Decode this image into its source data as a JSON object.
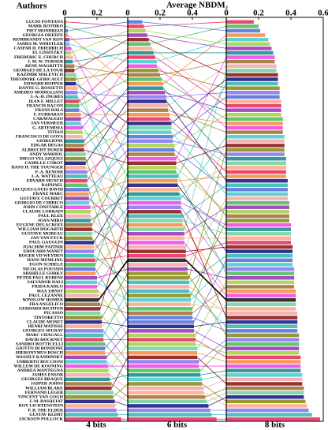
{
  "chart_data": {
    "type": "rank-bars",
    "title": "Average NBDM₂",
    "categories_label": "Authors",
    "categories": [
      "LUCIO FONTANA",
      "MARK ROTHKO",
      "PIET MONDRIAN",
      "GEORGIA OKEEFE",
      "REMBRANDT VAN RIJN",
      "JAMES M. WHISTLER",
      "CASPAR D. FRIEDRICH",
      "EL LISSITZKY",
      "FREDERIC E. CHURCH",
      "J. M. W. TURNER",
      "RENE MAGRITTE",
      "GEORGES DE LA TOUR",
      "KAZIMIR MALEVICH",
      "THEODORE GERICAULT",
      "EDWARD HOPPER",
      "DANTE G. ROSSETTI",
      "AMEDEO MODIGLIANI",
      "J.-A.-D. INGRES",
      "JEAN F. MILLET",
      "FRANCIS BACON",
      "FRANS HALS",
      "F. ZURBARAN",
      "CARAVAGGIO",
      "JAN VERMEER",
      "G. ARTEMISIA",
      "TITIAN",
      "FRANCISCO DE GOYA",
      "GIORGIONE",
      "EDGAR DEGAS",
      "ALBRECHT DURER",
      "ANDY WARHOL",
      "DIEGO VELAZQUEZ",
      "CAMILLE COROT",
      "HANS H. THE YOUNGER",
      "P.-A. RENOIR",
      "J.-A. WATTEAU",
      "EDVARD MUNCH",
      "RAPHAEL",
      "JACQUES-LOUIS DAVID",
      "FRANZ MARC",
      "GUSTAVE COURBET",
      "GIORGIO DE CHIRICO",
      "JOHN CONSTABLE",
      "CLAUDE LORRAIN",
      "PAUL KLEE",
      "JOAN MIRO",
      "EUGENE DELACROIX",
      "WILLIAM HOGARTH",
      "GUSTAVE MOREAU",
      "JAN VAN EYCK",
      "PAUL GAUGUIN",
      "JOACHIM PATINIR",
      "EDOUARD MANET",
      "ROGER VD WEYDEN",
      "HANS MEMLING",
      "EGON SCHIELE",
      "NICOLAS POUSSIN",
      "ARSHILLE GORKY",
      "PETER PAUL RUBENS",
      "SALVADOR DALI",
      "FRIDA KAHLO",
      "MAX ERNST",
      "PAUL CEZANNE",
      "WINSLOW HOMER",
      "FRA ANGELICO",
      "GERHARD RICHTER",
      "PICASSO",
      "TINTORETTO",
      "CLAUDE MONET",
      "HENRI MATISSE",
      "GEORGES SEURAT",
      "MARC CHAGALL",
      "DAVID HOCKNEY",
      "SANDRO BOTTICELLI",
      "GIOTTO DI BONDONE",
      "HIERONYMUS BOSCH",
      "WASSILY KANDINSKY",
      "UMBERTO BOCCIONI",
      "WILLEM DE KOONING",
      "ANDREA MANTEGNA",
      "JAMES ENSOR",
      "GEORGES BRAQUE",
      "JASPER JOHNS",
      "WILLIAM BLAKE",
      "FERNAND LEGER",
      "VINCENT VAN GOGH",
      "J.-M. BASQUIAT",
      "ROY LICHTENSTEIN",
      "P. B. THE ELDER",
      "GUSTAV KLIMT",
      "JACKSON POLLOCK"
    ],
    "series": [
      {
        "name": "4 bits",
        "xlim": [
          0,
          0.39
        ],
        "xticks": [
          0,
          0.2
        ],
        "values": [
          0.01,
          0.01,
          0.02,
          0.02,
          0.03,
          0.03,
          0.04,
          0.04,
          0.05,
          0.05,
          0.06,
          0.06,
          0.07,
          0.07,
          0.07,
          0.08,
          0.08,
          0.08,
          0.09,
          0.09,
          0.09,
          0.1,
          0.1,
          0.1,
          0.11,
          0.11,
          0.11,
          0.12,
          0.12,
          0.12,
          0.13,
          0.13,
          0.13,
          0.13,
          0.14,
          0.14,
          0.14,
          0.14,
          0.15,
          0.15,
          0.15,
          0.15,
          0.16,
          0.16,
          0.16,
          0.16,
          0.17,
          0.17,
          0.17,
          0.17,
          0.18,
          0.18,
          0.18,
          0.18,
          0.19,
          0.19,
          0.19,
          0.19,
          0.2,
          0.2,
          0.2,
          0.21,
          0.21,
          0.21,
          0.22,
          0.22,
          0.22,
          0.23,
          0.23,
          0.23,
          0.24,
          0.24,
          0.24,
          0.25,
          0.25,
          0.25,
          0.26,
          0.26,
          0.27,
          0.27,
          0.28,
          0.28,
          0.29,
          0.29,
          0.3,
          0.3,
          0.31,
          0.31,
          0.32,
          0.33,
          0.35
        ]
      },
      {
        "name": "6 bits",
        "xlim": [
          0,
          0.61
        ],
        "xticks": [
          0,
          0.2,
          0.4
        ],
        "values": [
          0.1,
          0.14,
          0.09,
          0.22,
          0.12,
          0.18,
          0.3,
          0.11,
          0.25,
          0.16,
          0.2,
          0.13,
          0.35,
          0.19,
          0.27,
          0.15,
          0.24,
          0.31,
          0.17,
          0.21,
          0.28,
          0.26,
          0.23,
          0.33,
          0.18,
          0.29,
          0.36,
          0.22,
          0.25,
          0.3,
          0.27,
          0.38,
          0.24,
          0.32,
          0.28,
          0.34,
          0.26,
          0.4,
          0.29,
          0.31,
          0.35,
          0.27,
          0.33,
          0.3,
          0.37,
          0.32,
          0.29,
          0.36,
          0.34,
          0.39,
          0.31,
          0.35,
          0.33,
          0.38,
          0.36,
          0.3,
          0.41,
          0.34,
          0.37,
          0.39,
          0.35,
          0.42,
          0.38,
          0.36,
          0.4,
          0.33,
          0.43,
          0.37,
          0.41,
          0.39,
          0.44,
          0.38,
          0.42,
          0.45,
          0.4,
          0.43,
          0.41,
          0.46,
          0.44,
          0.42,
          0.47,
          0.45,
          0.48,
          0.43,
          0.49,
          0.46,
          0.5,
          0.47,
          0.51,
          0.52,
          0.55
        ]
      },
      {
        "name": "8 bits",
        "xlim": [
          0,
          0.6
        ],
        "xticks": [
          0,
          0.2,
          0.4,
          0.6
        ],
        "values": [
          0.17,
          0.2,
          0.21,
          0.24,
          0.28,
          0.26,
          0.3,
          0.27,
          0.31,
          0.29,
          0.3,
          0.32,
          0.31,
          0.33,
          0.32,
          0.34,
          0.33,
          0.32,
          0.34,
          0.35,
          0.33,
          0.35,
          0.34,
          0.36,
          0.35,
          0.34,
          0.36,
          0.37,
          0.35,
          0.36,
          0.37,
          0.36,
          0.38,
          0.37,
          0.36,
          0.38,
          0.37,
          0.39,
          0.38,
          0.37,
          0.39,
          0.38,
          0.4,
          0.39,
          0.38,
          0.4,
          0.39,
          0.41,
          0.4,
          0.39,
          0.41,
          0.4,
          0.42,
          0.41,
          0.4,
          0.42,
          0.41,
          0.43,
          0.42,
          0.41,
          0.43,
          0.42,
          0.44,
          0.43,
          0.42,
          0.44,
          0.43,
          0.45,
          0.44,
          0.43,
          0.45,
          0.44,
          0.46,
          0.45,
          0.44,
          0.46,
          0.45,
          0.47,
          0.46,
          0.45,
          0.47,
          0.46,
          0.48,
          0.47,
          0.48,
          0.49,
          0.48,
          0.5,
          0.51,
          0.53,
          0.58
        ]
      }
    ],
    "palette": [
      "#e6194b",
      "#3cb44b",
      "#4363d8",
      "#f58231",
      "#911eb4",
      "#2fc8c8",
      "#f032e6",
      "#9acd32",
      "#f4a0a0",
      "#008080",
      "#9a6324",
      "#800000",
      "#66cc99",
      "#808000",
      "#000075",
      "#ffa07a",
      "#7b68ee",
      "#20b2aa"
    ],
    "highlight": {
      "category": 63,
      "color": "#000000"
    }
  }
}
